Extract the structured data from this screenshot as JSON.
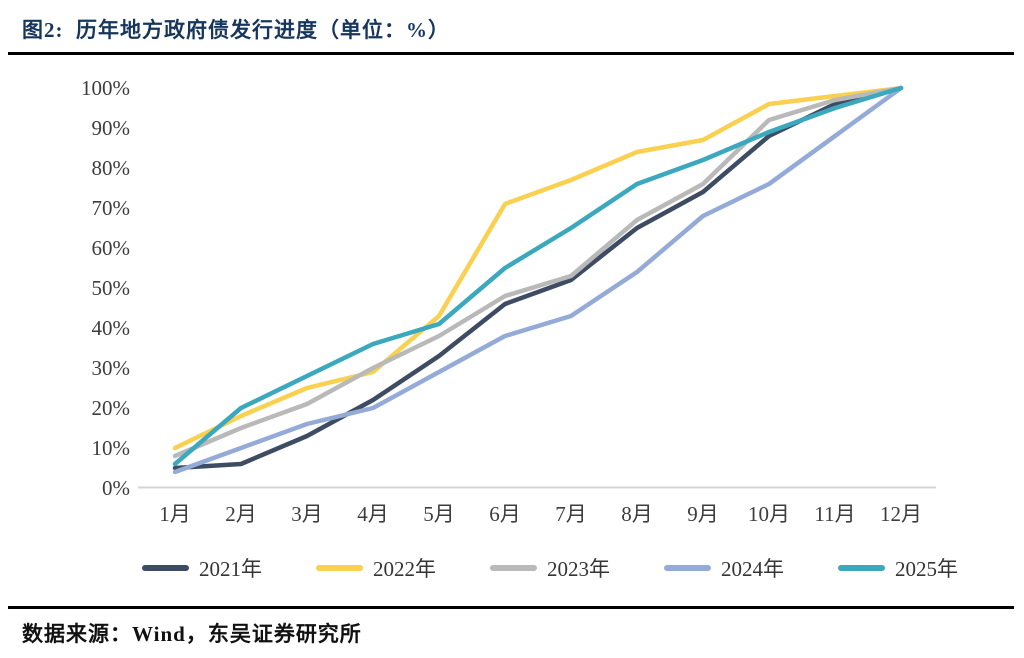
{
  "header": {
    "title": "图2:  历年地方政府债发行进度（单位：%）"
  },
  "chart_data": {
    "type": "line",
    "title": "历年地方政府债发行进度",
    "unit": "%",
    "categories": [
      "1月",
      "2月",
      "3月",
      "4月",
      "5月",
      "6月",
      "7月",
      "8月",
      "9月",
      "10月",
      "11月",
      "12月"
    ],
    "series": [
      {
        "name": "2021年",
        "color": "#3e4c63",
        "values": [
          5,
          6,
          13,
          22,
          33,
          46,
          52,
          65,
          74,
          88,
          96,
          100
        ]
      },
      {
        "name": "2022年",
        "color": "#f9d04f",
        "values": [
          10,
          18,
          25,
          29,
          43,
          71,
          77,
          84,
          87,
          96,
          98,
          100
        ]
      },
      {
        "name": "2023年",
        "color": "#b9b9b9",
        "values": [
          8,
          15,
          21,
          30,
          38,
          48,
          53,
          67,
          76,
          92,
          97,
          100
        ]
      },
      {
        "name": "2024年",
        "color": "#95abd7",
        "values": [
          4,
          10,
          16,
          20,
          29,
          38,
          43,
          54,
          68,
          76,
          88,
          100
        ]
      },
      {
        "name": "2025年",
        "color": "#3ba8bd",
        "values": [
          6,
          20,
          28,
          36,
          41,
          55,
          65,
          76,
          82,
          89,
          95,
          100
        ]
      }
    ],
    "ylim": [
      0,
      100
    ],
    "y_ticks": [
      "0%",
      "10%",
      "20%",
      "30%",
      "40%",
      "50%",
      "60%",
      "70%",
      "80%",
      "90%",
      "100%"
    ],
    "grid": false,
    "legend_position": "bottom",
    "axis_color": "#d4d4d4",
    "tick_label_color": "#3d3d3d"
  },
  "footer": {
    "source": "数据来源：Wind，东吴证券研究所"
  }
}
